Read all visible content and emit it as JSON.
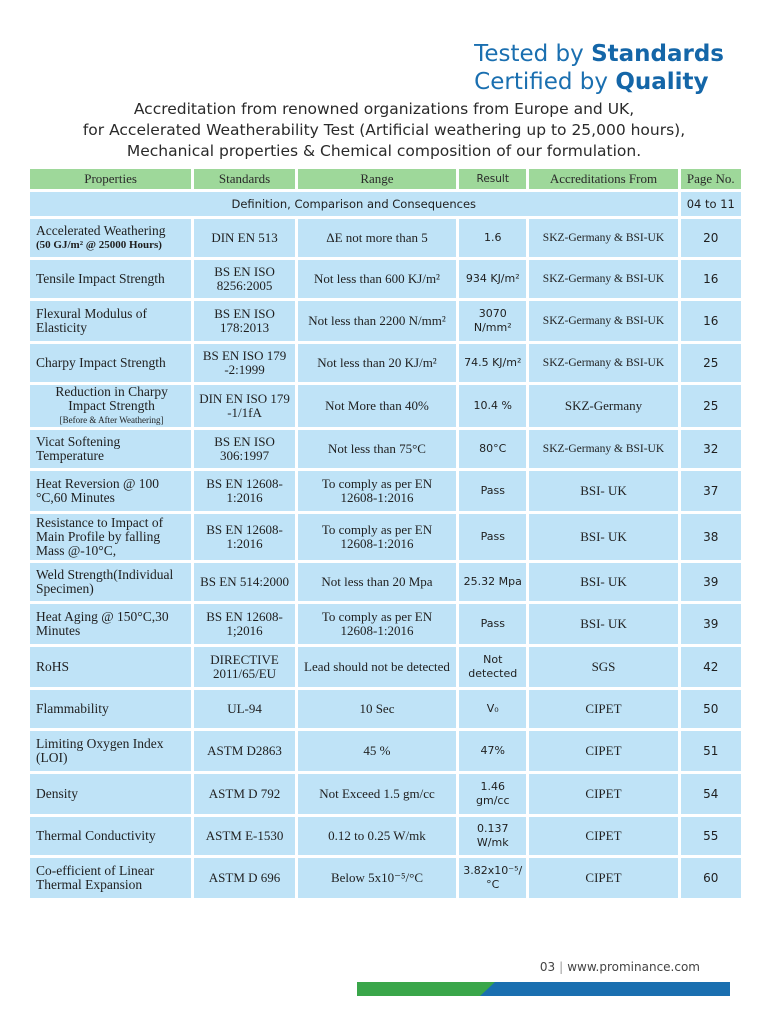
{
  "heading": {
    "line1_prefix": "Tested by",
    "line1_emph": "Standards",
    "line2_prefix": "Certified by",
    "line2_emph": "Quality"
  },
  "intro": [
    "Accreditation from renowned organizations from Europe and UK,",
    "for Accelerated Weatherability Test (Artificial weathering up to  25,000 hours),",
    "Mechanical properties & Chemical composition of our formulation."
  ],
  "table": {
    "headers": [
      "Properties",
      "Standards",
      "Range",
      "Result",
      "Accreditations From",
      "Page No."
    ],
    "definition_row": {
      "label": "Definition, Comparison  and Consequences",
      "page": "04 to 11"
    },
    "rows": [
      {
        "property": "Accelerated Weathering",
        "property_note": "(50 GJ/m² @ 25000 Hours)",
        "standard": "DIN EN 513",
        "range": "ΔE not more than 5",
        "result": "1.6",
        "accreditation": "SKZ-Germany & BSI-UK",
        "page": "20"
      },
      {
        "property": "Tensile Impact Strength",
        "standard": "BS EN ISO 8256:2005",
        "range": "Not less than 600 KJ/m²",
        "result": "934 KJ/m²",
        "accreditation": "SKZ-Germany & BSI-UK",
        "page": "16"
      },
      {
        "property": "Flexural Modulus of Elasticity",
        "standard": "BS EN ISO 178:2013",
        "range": "Not less than 2200 N/mm²",
        "result": "3070 N/mm²",
        "accreditation": "SKZ-Germany & BSI-UK",
        "page": "16"
      },
      {
        "property": "Charpy Impact Strength",
        "standard": "BS EN ISO 179 -2:1999",
        "range": "Not less than 20 KJ/m²",
        "result": "74.5 KJ/m²",
        "accreditation": "SKZ-Germany & BSI-UK",
        "page": "25"
      },
      {
        "property": "Reduction in Charpy Impact Strength",
        "property_note": "[Before & After Weathering]",
        "standard": "DIN EN ISO 179 -1/1fA",
        "range": "Not More than 40%",
        "result": "10.4 %",
        "accreditation": "SKZ-Germany",
        "page": "25"
      },
      {
        "property": "Vicat Softening Temperature",
        "standard": "BS EN ISO 306:1997",
        "range": "Not less than 75°C",
        "result": "80°C",
        "accreditation": "SKZ-Germany & BSI-UK",
        "page": "32"
      },
      {
        "property": "Heat Reversion @ 100 °C,60 Minutes",
        "standard": "BS EN 12608-1:2016",
        "range": "To comply as per EN 12608-1:2016",
        "result": "Pass",
        "accreditation": "BSI- UK",
        "page": "37"
      },
      {
        "property": "Resistance to Impact of Main Profile by falling Mass @-10°C,",
        "standard": "BS EN 12608-1:2016",
        "range": "To comply as per EN 12608-1:2016",
        "result": "Pass",
        "accreditation": "BSI- UK",
        "page": "38"
      },
      {
        "property": "Weld Strength(Individual Specimen)",
        "standard": "BS EN 514:2000",
        "range": "Not less than 20 Mpa",
        "result": "25.32 Mpa",
        "accreditation": "BSI- UK",
        "page": "39"
      },
      {
        "property": "Heat Aging @ 150°C,30 Minutes",
        "standard": "BS EN 12608-1;2016",
        "range": "To comply as per EN 12608-1:2016",
        "result": "Pass",
        "accreditation": "BSI- UK",
        "page": "39"
      },
      {
        "property": "RoHS",
        "standard": "DIRECTIVE 2011/65/EU",
        "range": "Lead should not be detected",
        "result": "Not detected",
        "accreditation": "SGS",
        "page": "42"
      },
      {
        "property": "Flammability",
        "standard": "UL-94",
        "range": "10 Sec",
        "result": "V₀",
        "accreditation": "CIPET",
        "page": "50"
      },
      {
        "property": "Limiting Oxygen Index (LOI)",
        "standard": "ASTM D2863",
        "range": "45 %",
        "result": "47%",
        "accreditation": "CIPET",
        "page": "51"
      },
      {
        "property": "Density",
        "standard": "ASTM D 792",
        "range": "Not Exceed 1.5 gm/cc",
        "result": "1.46 gm/cc",
        "accreditation": "CIPET",
        "page": "54"
      },
      {
        "property": "Thermal Conductivity",
        "standard": "ASTM E-1530",
        "range": "0.12 to 0.25 W/mk",
        "result": "0.137 W/mk",
        "accreditation": "CIPET",
        "page": "55"
      },
      {
        "property": "Co-efficient of Linear Thermal Expansion",
        "standard": "ASTM D 696",
        "range": "Below 5x10⁻⁵/°C",
        "result": "3.82x10⁻⁵/°C",
        "accreditation": "CIPET",
        "page": "60"
      }
    ]
  },
  "footer": {
    "page": "03",
    "url": "www.prominance.com"
  },
  "colors": {
    "brand_blue": "#1a6fb0",
    "brand_green": "#3aa64a",
    "header_green": "#9ed89a",
    "cell_blue": "#bfe3f7"
  }
}
